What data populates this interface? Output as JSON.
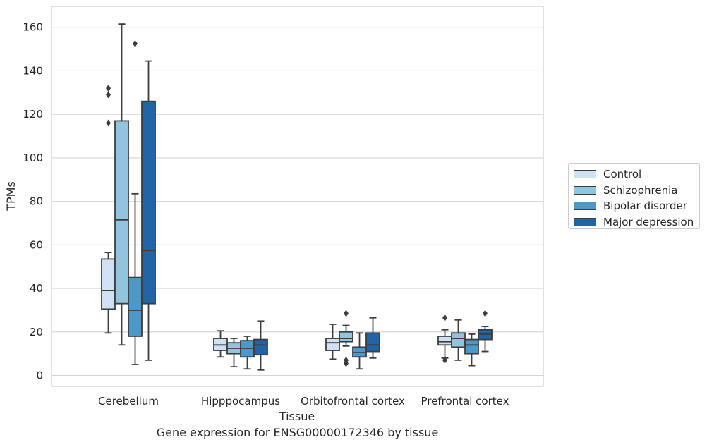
{
  "caption": "Gene expression for ENSG00000172346 by tissue",
  "chart_data": {
    "type": "box",
    "xlabel": "Tissue",
    "ylabel": "TPMs",
    "ylim": [
      -5,
      170
    ],
    "yticks": [
      0,
      20,
      40,
      60,
      80,
      100,
      120,
      140,
      160
    ],
    "grid": true,
    "legend_placement": "right, outside",
    "categories": [
      "Cerebellum",
      "Hipppocampus",
      "Orbitofrontal cortex",
      "Prefrontal cortex"
    ],
    "series": [
      {
        "name": "Control",
        "color": "#cfe1f2",
        "boxes": [
          {
            "low": 19.5,
            "q1": 30.5,
            "median": 39,
            "q3": 53.5,
            "high": 56.5,
            "outliers": [
              116,
              129,
              132
            ]
          },
          {
            "low": 8.5,
            "q1": 11.5,
            "median": 14,
            "q3": 17,
            "high": 20.5,
            "outliers": []
          },
          {
            "low": 7.5,
            "q1": 11.5,
            "median": 15,
            "q3": 17,
            "high": 23.5,
            "outliers": []
          },
          {
            "low": 8,
            "q1": 14,
            "median": 15.5,
            "q3": 18,
            "high": 21,
            "outliers": [
              26.5,
              7
            ]
          }
        ]
      },
      {
        "name": "Schizophrenia",
        "color": "#93c4de",
        "boxes": [
          {
            "low": 14,
            "q1": 33,
            "median": 71.5,
            "q3": 117,
            "high": 161.5,
            "outliers": []
          },
          {
            "low": 4,
            "q1": 10,
            "median": 12.5,
            "q3": 15,
            "high": 17,
            "outliers": []
          },
          {
            "low": 13.5,
            "q1": 15.5,
            "median": 17,
            "q3": 20,
            "high": 23,
            "outliers": [
              28.5,
              7,
              5.5
            ]
          },
          {
            "low": 7,
            "q1": 13,
            "median": 17,
            "q3": 19.5,
            "high": 25.5,
            "outliers": []
          }
        ]
      },
      {
        "name": "Bipolar disorder",
        "color": "#4b98c9",
        "boxes": [
          {
            "low": 5,
            "q1": 18,
            "median": 30,
            "q3": 45,
            "high": 83.5,
            "outliers": [
              152.5
            ]
          },
          {
            "low": 3,
            "q1": 8.5,
            "median": 12.5,
            "q3": 16,
            "high": 18,
            "outliers": []
          },
          {
            "low": 3,
            "q1": 8.5,
            "median": 10.5,
            "q3": 13,
            "high": 19.5,
            "outliers": []
          },
          {
            "low": 4.5,
            "q1": 10,
            "median": 14,
            "q3": 16.5,
            "high": 19,
            "outliers": []
          }
        ]
      },
      {
        "name": "Major depression",
        "color": "#2064a8",
        "boxes": [
          {
            "low": 7,
            "q1": 33,
            "median": 57.5,
            "q3": 126,
            "high": 144.5,
            "outliers": []
          },
          {
            "low": 2.5,
            "q1": 9.5,
            "median": 14,
            "q3": 16.5,
            "high": 25,
            "outliers": []
          },
          {
            "low": 8,
            "q1": 11,
            "median": 14,
            "q3": 19.5,
            "high": 26.5,
            "outliers": []
          },
          {
            "low": 11,
            "q1": 16.5,
            "median": 19,
            "q3": 21,
            "high": 22.5,
            "outliers": [
              28.5
            ]
          }
        ]
      }
    ]
  }
}
